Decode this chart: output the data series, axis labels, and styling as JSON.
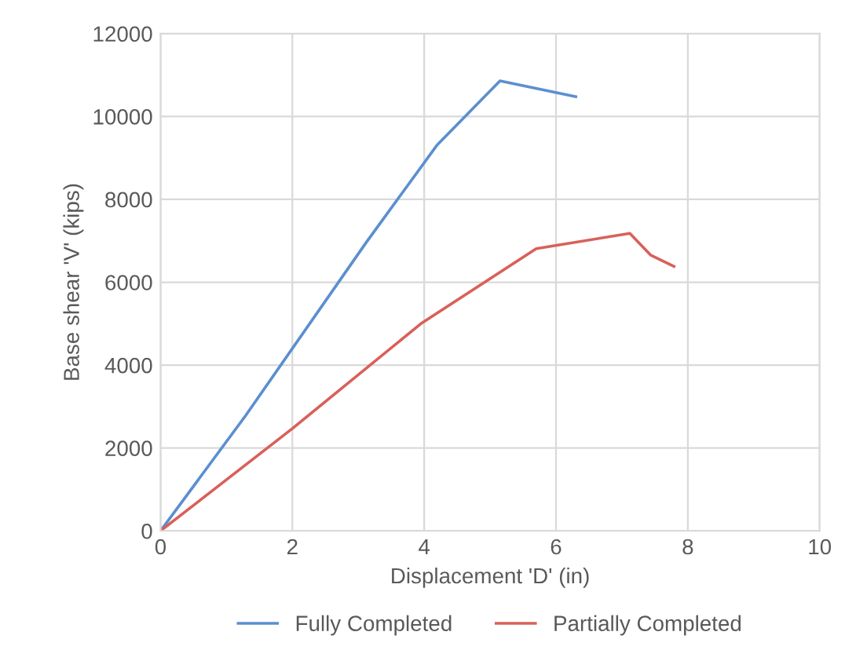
{
  "chart_data": {
    "type": "line",
    "xlabel": "Displacement 'D' (in)",
    "ylabel": "Base shear 'V' (kips)",
    "xlim": [
      0,
      10
    ],
    "xticks": [
      0,
      2,
      4,
      6,
      8,
      10
    ],
    "ylim": [
      0,
      12000
    ],
    "yticks": [
      0,
      2000,
      4000,
      6000,
      8000,
      10000,
      12000
    ],
    "grid": true,
    "legend": "bottom",
    "marker": "none",
    "line_style": "solid",
    "series": [
      {
        "name": "Fully Completed",
        "color": "#5b8fd0",
        "x": [
          0,
          1.29,
          3.12,
          4.19,
          5.15,
          6.3
        ],
        "values": [
          0,
          2780,
          6960,
          9300,
          10860,
          10480
        ]
      },
      {
        "name": "Partially Completed",
        "color": "#d9605a",
        "x": [
          0,
          2.0,
          3.95,
          5.7,
          7.12,
          7.44,
          7.79
        ],
        "values": [
          0,
          2470,
          5000,
          6810,
          7180,
          6650,
          6380
        ]
      }
    ]
  }
}
